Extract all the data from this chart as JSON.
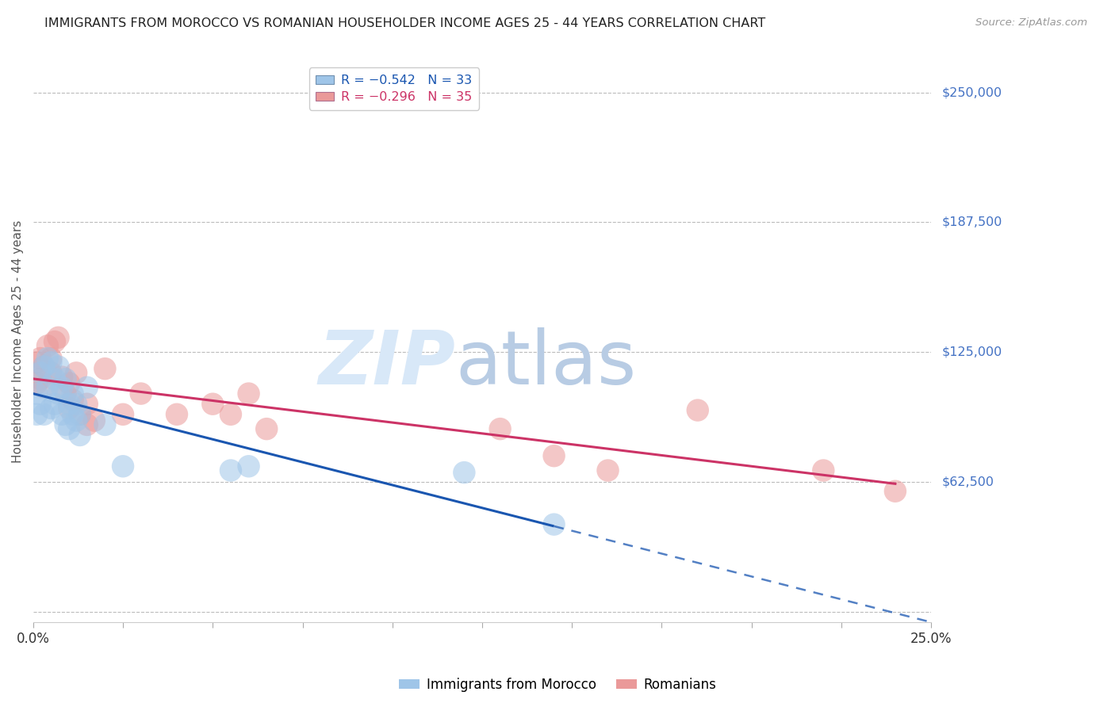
{
  "title": "IMMIGRANTS FROM MOROCCO VS ROMANIAN HOUSEHOLDER INCOME AGES 25 - 44 YEARS CORRELATION CHART",
  "source": "Source: ZipAtlas.com",
  "ylabel": "Householder Income Ages 25 - 44 years",
  "ytick_values": [
    0,
    62500,
    125000,
    187500,
    250000
  ],
  "ytick_right_labels": [
    "",
    "$62,500",
    "$125,000",
    "$187,500",
    "$250,000"
  ],
  "xlim": [
    0.0,
    0.25
  ],
  "ylim": [
    -5000,
    265000
  ],
  "blue_label": "Immigrants from Morocco",
  "pink_label": "Romanians",
  "blue_R": "-0.542",
  "blue_N": "33",
  "pink_R": "-0.296",
  "pink_N": "35",
  "blue_scatter_color": "#9fc5e8",
  "pink_scatter_color": "#ea9999",
  "blue_line_color": "#1a56b0",
  "pink_line_color": "#cc3366",
  "background_color": "#ffffff",
  "grid_color": "#bbbbbb",
  "right_axis_color": "#4472c4",
  "morocco_x": [
    0.001,
    0.001,
    0.002,
    0.002,
    0.003,
    0.003,
    0.004,
    0.004,
    0.005,
    0.005,
    0.006,
    0.006,
    0.007,
    0.007,
    0.008,
    0.008,
    0.009,
    0.009,
    0.01,
    0.01,
    0.011,
    0.011,
    0.012,
    0.012,
    0.013,
    0.013,
    0.015,
    0.02,
    0.025,
    0.055,
    0.06,
    0.12,
    0.145
  ],
  "morocco_y": [
    105000,
    95000,
    115000,
    100000,
    118000,
    95000,
    122000,
    108000,
    120000,
    98000,
    112000,
    100000,
    118000,
    105000,
    108000,
    95000,
    112000,
    90000,
    100000,
    88000,
    105000,
    95000,
    100000,
    92000,
    95000,
    85000,
    108000,
    90000,
    70000,
    68000,
    70000,
    67000,
    42000
  ],
  "romanian_x": [
    0.001,
    0.001,
    0.002,
    0.002,
    0.003,
    0.003,
    0.004,
    0.005,
    0.005,
    0.006,
    0.007,
    0.008,
    0.009,
    0.01,
    0.01,
    0.011,
    0.012,
    0.013,
    0.015,
    0.015,
    0.017,
    0.02,
    0.025,
    0.03,
    0.04,
    0.05,
    0.055,
    0.06,
    0.065,
    0.13,
    0.145,
    0.16,
    0.185,
    0.22,
    0.24
  ],
  "romanian_y": [
    120000,
    110000,
    122000,
    112000,
    118000,
    108000,
    128000,
    122000,
    115000,
    130000,
    132000,
    113000,
    105000,
    110000,
    98000,
    102000,
    115000,
    95000,
    100000,
    90000,
    92000,
    117000,
    95000,
    105000,
    95000,
    100000,
    95000,
    105000,
    88000,
    88000,
    75000,
    68000,
    97000,
    68000,
    58000
  ],
  "watermark_zip_color": "#d8e8f8",
  "watermark_atlas_color": "#b8cce4"
}
